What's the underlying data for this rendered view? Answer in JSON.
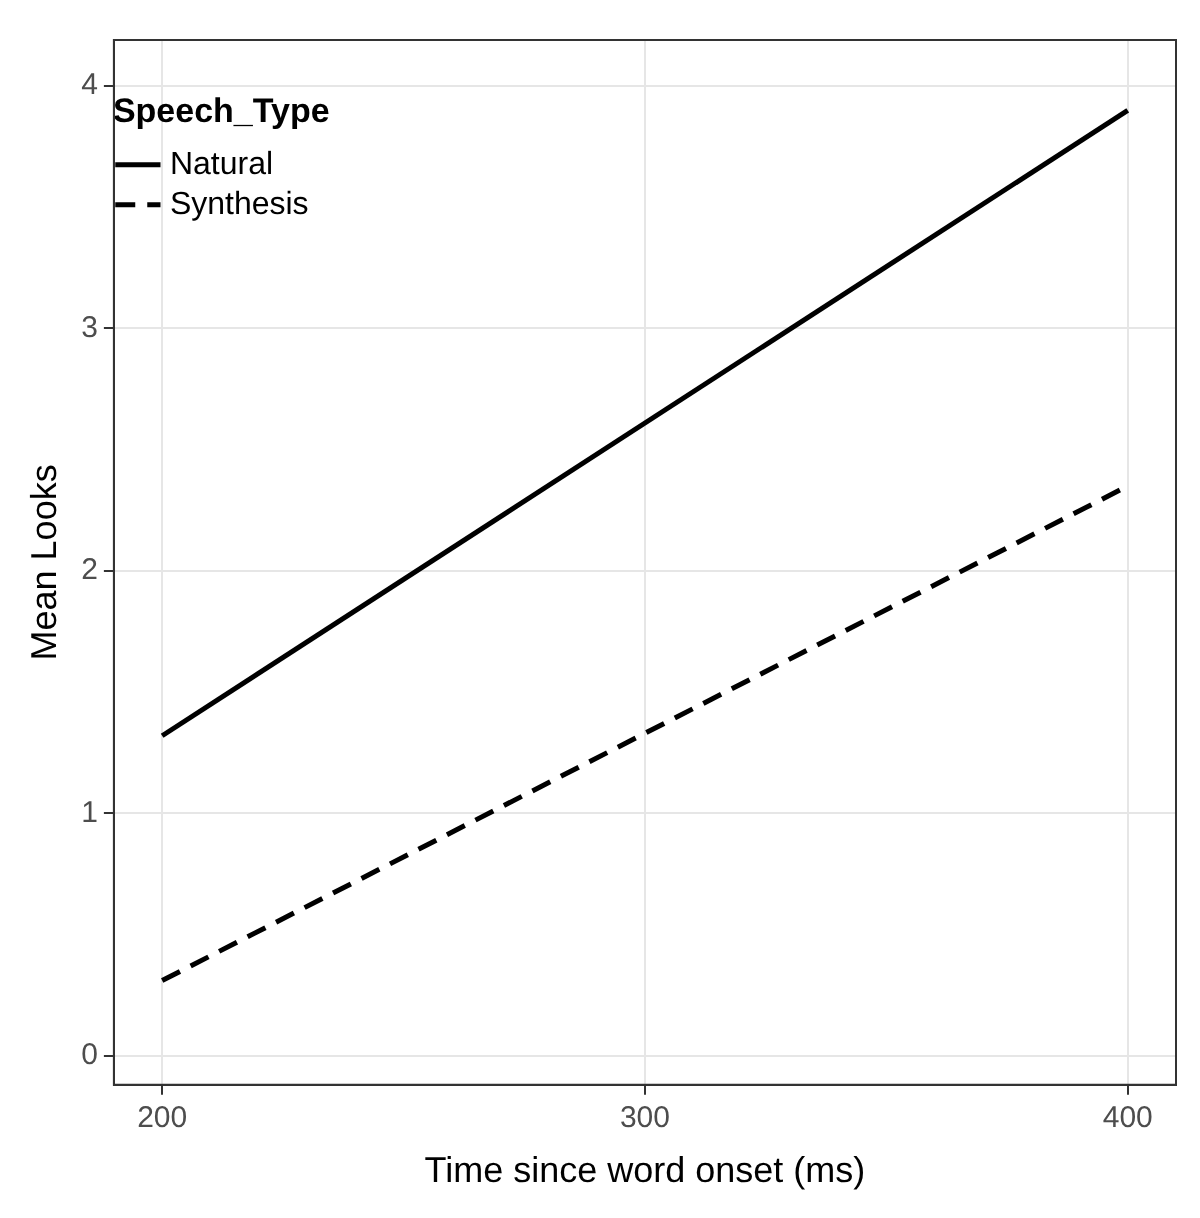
{
  "chart_data": {
    "type": "line",
    "xlabel": "Time since word onset (ms)",
    "ylabel": "Mean Looks",
    "legend_title": "Speech_Type",
    "x": [
      200,
      400
    ],
    "series": [
      {
        "name": "Natural",
        "color": "#000000",
        "line_style": "solid",
        "values": [
          1.32,
          3.9
        ]
      },
      {
        "name": "Synthesis",
        "color": "#000000",
        "line_style": "dashed",
        "values": [
          0.31,
          2.35
        ]
      }
    ],
    "xlim": [
      190,
      410
    ],
    "xticks": [
      200,
      300,
      400
    ],
    "ylim": [
      -0.12,
      4.19
    ],
    "yticks": [
      0,
      1,
      2,
      3,
      4
    ],
    "grid": true,
    "legend": "top left",
    "marker": "none"
  }
}
